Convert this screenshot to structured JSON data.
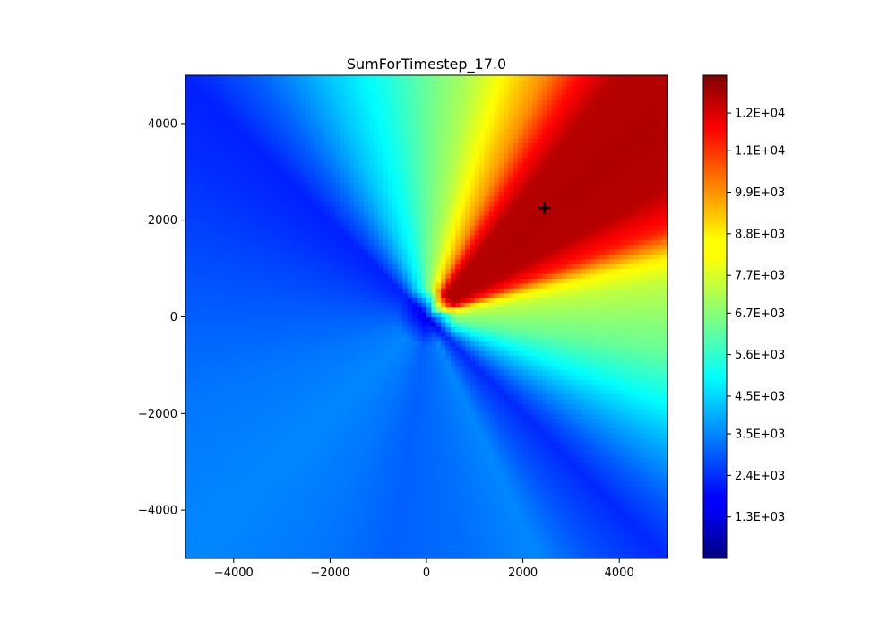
{
  "chart_data": {
    "type": "heatmap",
    "title": "SumForTimestep_17.0",
    "xlabel": "",
    "ylabel": "",
    "xlim": [
      -5000,
      5000
    ],
    "ylim": [
      -5000,
      5000
    ],
    "x_ticks": [
      -4000,
      -2000,
      0,
      2000,
      4000
    ],
    "y_ticks": [
      -4000,
      -2000,
      0,
      2000,
      4000
    ],
    "x_tick_labels": [
      "−4000",
      "−2000",
      "0",
      "2000",
      "4000"
    ],
    "y_tick_labels": [
      "−4000",
      "−2000",
      "0",
      "2000",
      "4000"
    ],
    "grid": false,
    "colormap": "jet",
    "color_range": [
      200,
      13000
    ],
    "colorbar_ticks": [
      1300,
      2400,
      3500,
      4500,
      5600,
      6700,
      7700,
      8800,
      9900,
      11000,
      12000
    ],
    "colorbar_tick_labels": [
      "1.3E+03",
      "2.4E+03",
      "3.5E+03",
      "4.5E+03",
      "5.6E+03",
      "6.7E+03",
      "7.7E+03",
      "8.8E+03",
      "9.9E+03",
      "1.1E+04",
      "1.2E+04"
    ],
    "grid_resolution": 100,
    "field": {
      "center_value": 1500,
      "angular_profile_deg": [
        [
          0,
          6800
        ],
        [
          8,
          7400
        ],
        [
          14,
          8400
        ],
        [
          20,
          11000
        ],
        [
          28,
          12300
        ],
        [
          40,
          12400
        ],
        [
          52,
          12300
        ],
        [
          58,
          11200
        ],
        [
          64,
          9600
        ],
        [
          72,
          8300
        ],
        [
          80,
          7200
        ],
        [
          90,
          6300
        ],
        [
          100,
          5300
        ],
        [
          112,
          4300
        ],
        [
          125,
          3000
        ],
        [
          135,
          2200
        ],
        [
          145,
          2350
        ],
        [
          158,
          2600
        ],
        [
          180,
          3000
        ],
        [
          200,
          3300
        ],
        [
          225,
          3500
        ],
        [
          245,
          3300
        ],
        [
          262,
          3000
        ],
        [
          280,
          3200
        ],
        [
          295,
          3500
        ],
        [
          305,
          2800
        ],
        [
          315,
          2300
        ],
        [
          322,
          2900
        ],
        [
          332,
          4000
        ],
        [
          342,
          5200
        ],
        [
          352,
          6300
        ],
        [
          360,
          6800
        ]
      ]
    },
    "marker": {
      "symbol": "+",
      "x": 2450,
      "y": 2250,
      "color": "#000000"
    }
  }
}
